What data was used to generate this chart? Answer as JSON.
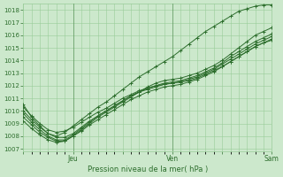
{
  "bg_color": "#cce8cc",
  "grid_color": "#99cc99",
  "line_color": "#2d6e2d",
  "dot_color": "#2d6e2d",
  "xlabel_text": "Pression niveau de la mer( hPa )",
  "ylim": [
    1006.8,
    1018.5
  ],
  "yticks": [
    1007,
    1008,
    1009,
    1010,
    1011,
    1012,
    1013,
    1014,
    1015,
    1016,
    1017,
    1018
  ],
  "xtick_labels": [
    "",
    "Jeu",
    "",
    "Ven",
    "",
    "Sam"
  ],
  "xtick_positions": [
    0,
    24,
    48,
    72,
    96,
    120
  ],
  "vlines": [
    24,
    72,
    120
  ],
  "total_hours": 120,
  "x_hours": [
    0,
    4,
    8,
    12,
    16,
    20,
    24,
    28,
    32,
    36,
    40,
    44,
    48,
    52,
    56,
    60,
    64,
    68,
    72,
    76,
    80,
    84,
    88,
    92,
    96,
    100,
    104,
    108,
    112,
    116,
    120
  ],
  "series": [
    [
      1010.5,
      1009.5,
      1008.8,
      1008.2,
      1008.0,
      1008.3,
      1008.8,
      1009.3,
      1009.8,
      1010.3,
      1010.7,
      1011.2,
      1011.7,
      1012.2,
      1012.7,
      1013.1,
      1013.5,
      1013.9,
      1014.3,
      1014.8,
      1015.3,
      1015.8,
      1016.3,
      1016.7,
      1017.1,
      1017.5,
      1017.9,
      1018.1,
      1018.3,
      1018.4,
      1018.4
    ],
    [
      1009.2,
      1008.6,
      1008.1,
      1007.7,
      1007.5,
      1007.6,
      1008.0,
      1008.5,
      1009.0,
      1009.5,
      1009.9,
      1010.3,
      1010.7,
      1011.1,
      1011.5,
      1011.9,
      1012.2,
      1012.4,
      1012.5,
      1012.6,
      1012.8,
      1013.0,
      1013.3,
      1013.6,
      1014.0,
      1014.5,
      1015.0,
      1015.5,
      1016.0,
      1016.3,
      1016.6
    ],
    [
      1009.8,
      1009.1,
      1008.5,
      1008.0,
      1007.7,
      1007.7,
      1008.1,
      1008.6,
      1009.1,
      1009.6,
      1010.0,
      1010.4,
      1010.8,
      1011.2,
      1011.5,
      1011.8,
      1012.0,
      1012.2,
      1012.3,
      1012.4,
      1012.6,
      1012.8,
      1013.1,
      1013.4,
      1013.8,
      1014.3,
      1014.7,
      1015.1,
      1015.5,
      1015.8,
      1016.1
    ],
    [
      1010.0,
      1009.3,
      1008.7,
      1008.2,
      1007.9,
      1007.9,
      1008.2,
      1008.7,
      1009.2,
      1009.6,
      1010.0,
      1010.4,
      1010.8,
      1011.2,
      1011.5,
      1011.7,
      1011.9,
      1012.1,
      1012.2,
      1012.3,
      1012.5,
      1012.7,
      1013.0,
      1013.3,
      1013.7,
      1014.1,
      1014.5,
      1014.9,
      1015.3,
      1015.6,
      1015.9
    ],
    [
      1009.5,
      1008.9,
      1008.3,
      1007.9,
      1007.6,
      1007.6,
      1008.0,
      1008.4,
      1008.9,
      1009.3,
      1009.7,
      1010.1,
      1010.5,
      1010.9,
      1011.2,
      1011.5,
      1011.7,
      1011.9,
      1012.0,
      1012.1,
      1012.3,
      1012.5,
      1012.8,
      1013.1,
      1013.5,
      1013.9,
      1014.3,
      1014.7,
      1015.1,
      1015.4,
      1015.7
    ],
    [
      1010.3,
      1009.6,
      1009.0,
      1008.5,
      1008.3,
      1008.4,
      1008.7,
      1009.1,
      1009.5,
      1009.9,
      1010.2,
      1010.6,
      1011.0,
      1011.3,
      1011.6,
      1011.8,
      1012.0,
      1012.1,
      1012.2,
      1012.3,
      1012.4,
      1012.6,
      1012.9,
      1013.2,
      1013.5,
      1013.9,
      1014.3,
      1014.7,
      1015.1,
      1015.4,
      1015.6
    ]
  ]
}
